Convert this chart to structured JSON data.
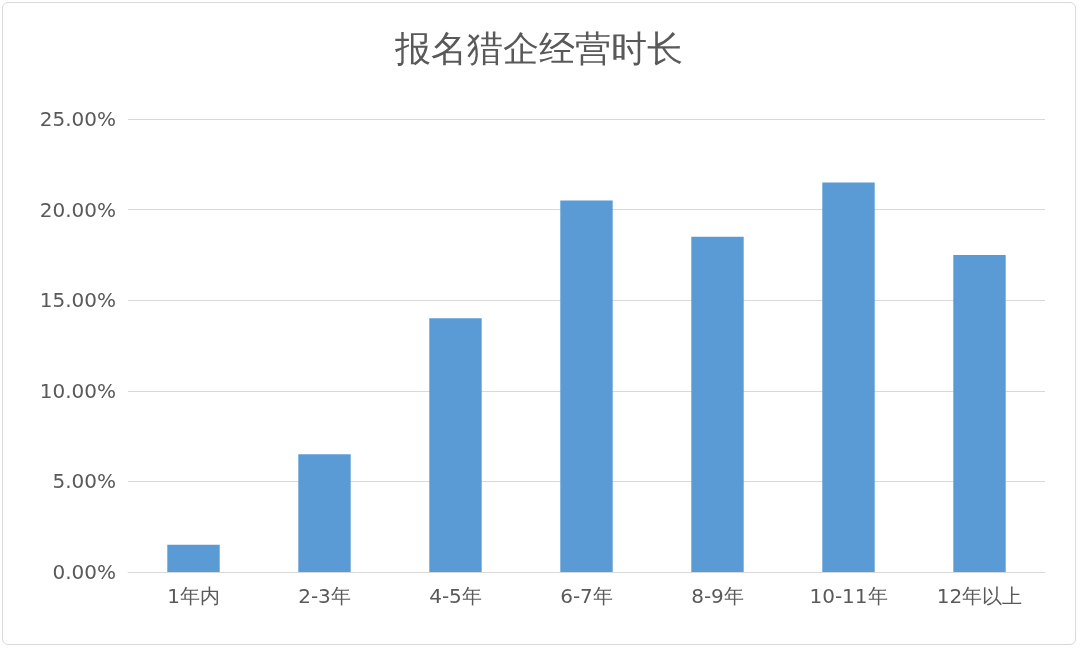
{
  "chart_data": {
    "type": "bar",
    "title": "报名猎企经营时长",
    "categories": [
      "1年内",
      "2-3年",
      "4-5年",
      "6-7年",
      "8-9年",
      "10-11年",
      "12年以上"
    ],
    "values": [
      1.5,
      6.5,
      14.0,
      20.5,
      18.5,
      21.5,
      17.5
    ],
    "color": "#5b9bd5",
    "ylim": [
      0,
      25
    ],
    "yticks": [
      {
        "value": 0,
        "label": "0.00%"
      },
      {
        "value": 5,
        "label": "5.00%"
      },
      {
        "value": 10,
        "label": "10.00%"
      },
      {
        "value": 15,
        "label": "15.00%"
      },
      {
        "value": 20,
        "label": "20.00%"
      },
      {
        "value": 25,
        "label": "25.00%"
      }
    ],
    "grid": "y"
  }
}
